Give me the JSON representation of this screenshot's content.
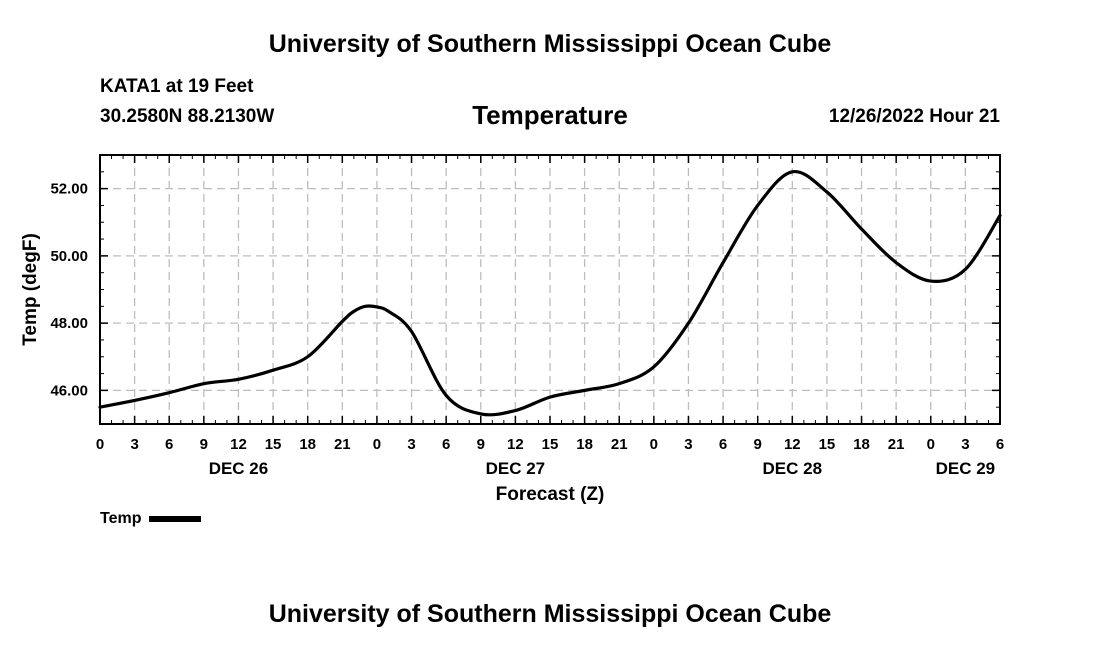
{
  "header": {
    "title": "University of Southern Mississippi Ocean Cube",
    "station": "KATA1 at 19 Feet",
    "coordinates": "30.2580N  88.2130W",
    "valid_time": "12/26/2022 Hour 21"
  },
  "footer": {
    "title": "University of Southern Mississippi Ocean Cube"
  },
  "legend": {
    "label": "Temp",
    "line_color": "#000000"
  },
  "chart_data": {
    "type": "line",
    "title": "Temperature",
    "xlabel": "Forecast (Z)",
    "ylabel": "Temp (degF)",
    "xlim": [
      0,
      78
    ],
    "ylim": [
      45.0,
      53.0
    ],
    "grid": true,
    "x_unit": "hours from DEC 26 00Z",
    "x_ticks": [
      0,
      3,
      6,
      9,
      12,
      15,
      18,
      21,
      24,
      27,
      30,
      33,
      36,
      39,
      42,
      45,
      48,
      51,
      54,
      57,
      60,
      63,
      66,
      69,
      72,
      75,
      78
    ],
    "x_tick_labels": [
      "0",
      "3",
      "6",
      "9",
      "12",
      "15",
      "18",
      "21",
      "0",
      "3",
      "6",
      "9",
      "12",
      "15",
      "18",
      "21",
      "0",
      "3",
      "6",
      "9",
      "12",
      "15",
      "18",
      "21",
      "0",
      "3",
      "6"
    ],
    "day_labels": [
      {
        "x": 12,
        "label": "DEC 26"
      },
      {
        "x": 36,
        "label": "DEC 27"
      },
      {
        "x": 60,
        "label": "DEC 28"
      },
      {
        "x": 75,
        "label": "DEC 29"
      }
    ],
    "y_ticks": [
      46,
      48,
      50,
      52
    ],
    "y_tick_labels": [
      "46.00",
      "48.00",
      "50.00",
      "52.00"
    ],
    "series": [
      {
        "name": "Temp",
        "x": [
          0,
          3,
          6,
          9,
          12,
          15,
          18,
          21,
          22,
          23,
          24,
          25,
          27,
          30,
          33,
          36,
          39,
          42,
          45,
          48,
          51,
          54,
          57,
          60,
          63,
          66,
          69,
          72,
          75,
          78
        ],
        "values": [
          45.5,
          45.7,
          45.93,
          46.2,
          46.33,
          46.6,
          47.0,
          48.05,
          48.35,
          48.5,
          48.48,
          48.35,
          47.75,
          45.85,
          45.3,
          45.4,
          45.8,
          46.0,
          46.2,
          46.7,
          48.0,
          49.8,
          51.5,
          52.5,
          51.9,
          50.8,
          49.8,
          49.25,
          49.6,
          51.2
        ]
      }
    ]
  }
}
